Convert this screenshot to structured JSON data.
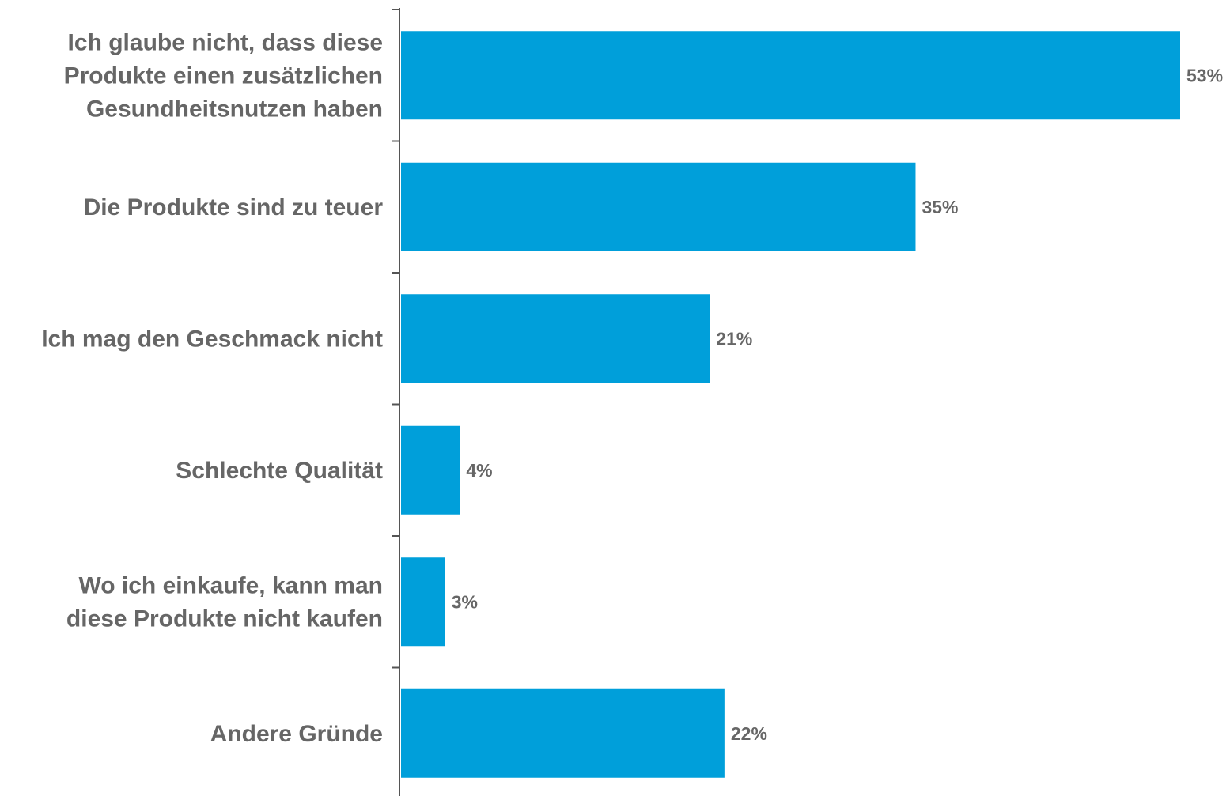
{
  "colors": {
    "bar": "#009fda",
    "text": "#666666",
    "axis": "#555555"
  },
  "chart_data": {
    "type": "bar",
    "orientation": "horizontal",
    "categories": [
      [
        "Ich glaube nicht, dass diese",
        "Produkte einen zusätzlichen",
        "Gesundheitsnutzen haben"
      ],
      [
        "Die Produkte sind zu teuer"
      ],
      [
        "Ich mag den Geschmack nicht"
      ],
      [
        "Schlechte Qualität"
      ],
      [
        "Wo ich einkaufe, kann man",
        "diese Produkte nicht kaufen"
      ],
      [
        "Andere Gründe"
      ]
    ],
    "values": [
      53,
      35,
      21,
      4,
      3,
      22
    ],
    "value_labels": [
      "53%",
      "35%",
      "21%",
      "4%",
      "3%",
      "22%"
    ],
    "xlim": [
      0,
      53
    ],
    "grid": false,
    "legend": "none"
  }
}
